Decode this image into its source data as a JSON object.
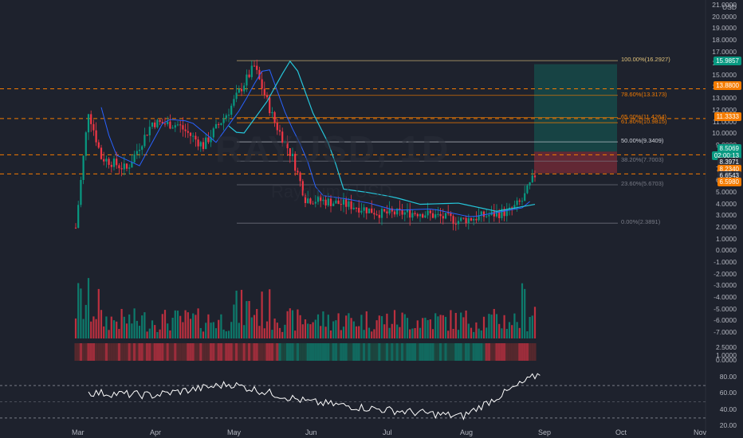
{
  "watermark": {
    "symbol": "RAYUSD, 1D",
    "name": "Raydium / USD"
  },
  "axis": {
    "currency": "USD",
    "price_ticks": [
      "21.0000",
      "20.0000",
      "19.0000",
      "18.0000",
      "17.0000",
      "16.0000",
      "15.0000",
      "14.0000",
      "13.0000",
      "12.0000",
      "11.0000",
      "10.0000",
      "9.0000",
      "8.0000",
      "7.0000",
      "6.0000",
      "5.0000",
      "4.0000",
      "3.0000",
      "2.0000",
      "1.0000",
      "0.0000",
      "-1.0000",
      "-2.0000",
      "-3.0000",
      "-4.0000",
      "-5.0000",
      "-6.0000",
      "-7.0000"
    ],
    "osc_ticks": [
      "2.5000",
      "1.0000",
      "0.0000"
    ],
    "rsi_ticks": [
      "80.00",
      "60.00",
      "40.00",
      "20.00"
    ],
    "months": [
      "Mar",
      "Apr",
      "May",
      "Jun",
      "Jul",
      "Aug",
      "Sep",
      "Oct",
      "Nov"
    ]
  },
  "tags": [
    {
      "text": "15.9857",
      "color": "#089981"
    },
    {
      "text": "13.8800",
      "color": "#f57c00"
    },
    {
      "text": "11.3333",
      "color": "#f57c00"
    },
    {
      "text": "8.5069",
      "color": "#089981"
    },
    {
      "text": "02:00:13",
      "color": "#089981"
    },
    {
      "text": "8.3971",
      "color": "#2a2e39"
    },
    {
      "text": "8.2340",
      "color": "#f57c00"
    },
    {
      "text": "6.6543",
      "color": "#2a2e39"
    },
    {
      "text": "6.5980",
      "color": "#f57c00"
    }
  ],
  "fib_levels": [
    {
      "label": "100.00%(16.2927)",
      "price": 16.2927,
      "color": "#e0c27a"
    },
    {
      "label": "78.60%(13.3173)",
      "price": 13.3173,
      "color": "#f57c00"
    },
    {
      "label": "65.00%(11.4264)",
      "price": 11.4264,
      "color": "#f57c00"
    },
    {
      "label": "61.80%(10.9815)",
      "price": 10.9815,
      "color": "#f57c00"
    },
    {
      "label": "50.00%(9.3409)",
      "price": 9.3409,
      "color": "#d1d4dc"
    },
    {
      "label": "38.20%(7.7003)",
      "price": 7.7003,
      "color": "#787b86"
    },
    {
      "label": "23.60%(5.6703)",
      "price": 5.6703,
      "color": "#787b86"
    },
    {
      "label": "0.00%(2.3891)",
      "price": 2.3891,
      "color": "#787b86"
    }
  ],
  "chart_data": {
    "type": "line",
    "x": [
      "Mar",
      "Apr",
      "May",
      "Jun",
      "Jul",
      "Aug",
      "Sep"
    ],
    "series": [
      {
        "values": [
          8.5,
          11.0,
          15.5,
          4.0,
          3.3,
          3.0,
          8.5
        ]
      }
    ],
    "ylim": [
      -7,
      21
    ],
    "rsi": {
      "values": [
        62,
        58,
        72,
        50,
        40,
        32,
        85
      ],
      "ylim": [
        20,
        90
      ]
    },
    "horizontal_levels": [
      13.88,
      11.3333,
      8.234,
      6.598
    ]
  }
}
